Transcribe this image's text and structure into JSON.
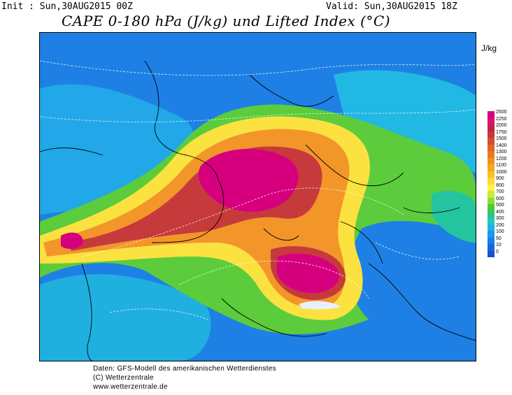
{
  "header": {
    "init": "Init : Sun,30AUG2015 00Z",
    "valid": "Valid: Sun,30AUG2015 18Z",
    "title": "CAPE 0-180 hPa (J/kg) und Lifted Index (°C)"
  },
  "legend": {
    "unit": "J/kg",
    "levels": [
      "2500",
      "2250",
      "2000",
      "1750",
      "1500",
      "1400",
      "1300",
      "1200",
      "1100",
      "1000",
      "900",
      "800",
      "700",
      "600",
      "500",
      "400",
      "300",
      "200",
      "100",
      "50",
      "10",
      "0"
    ],
    "colors": [
      "#d6007e",
      "#e0106a",
      "#c22046",
      "#c8383a",
      "#d2502e",
      "#de6428",
      "#e87a22",
      "#f0901e",
      "#f4a820",
      "#f8c028",
      "#fcd838",
      "#fff04a",
      "#c8ec3c",
      "#8cdc34",
      "#50c83a",
      "#2cc47a",
      "#22c8b8",
      "#20b4e0",
      "#1e96ec",
      "#1a7ee8",
      "#1866de",
      "#1a52c8"
    ]
  },
  "footer": {
    "line1": "Daten: GFS-Modell des amerikanischen Wetterdienstes",
    "line2": "(C) Wetterzentrale",
    "line3": "www.wetterzentrale.de"
  }
}
